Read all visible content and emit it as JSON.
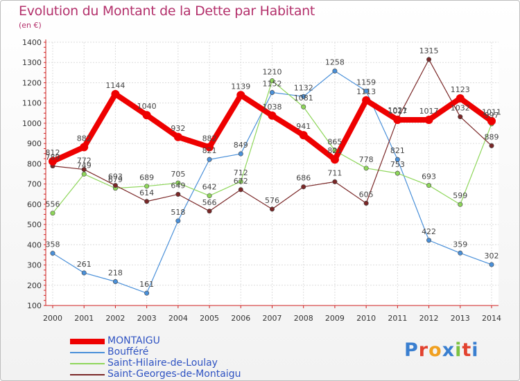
{
  "chart_data": {
    "type": "line",
    "title": "Evolution du Montant de la Dette par Habitant",
    "subtitle": "(en €)",
    "xlabel": "",
    "ylabel": "",
    "x": [
      "2000",
      "2001",
      "2002",
      "2003",
      "2004",
      "2005",
      "2006",
      "2007",
      "2008",
      "2009",
      "2010",
      "2011",
      "2012",
      "2013",
      "2014"
    ],
    "ylim": [
      100,
      1400
    ],
    "yticks": [
      100,
      200,
      300,
      400,
      500,
      600,
      700,
      800,
      900,
      1000,
      1100,
      1200,
      1300,
      1400
    ],
    "grid": true,
    "legend": "bottom-left",
    "series": [
      {
        "name": "MONTAIGU",
        "color": "#ee0000",
        "values": [
          812,
          882,
          1144,
          1040,
          932,
          882,
          1139,
          1038,
          941,
          821,
          1113,
          1017,
          1017,
          1123,
          1011
        ],
        "labels": [
          "812",
          "882",
          "1144",
          "1040",
          "932",
          "882",
          "1139",
          "1038",
          "941",
          "821",
          "1113",
          "1017",
          "1017",
          "1123",
          "1011"
        ]
      },
      {
        "name": "Boufféré",
        "color": "#4a90d9",
        "values": [
          358,
          261,
          218,
          161,
          518,
          821,
          849,
          1152,
          1132,
          1258,
          1159,
          821,
          422,
          359,
          302
        ],
        "labels": [
          "358",
          "261",
          "218",
          "161",
          "518",
          "821",
          "849",
          "1152",
          "1132",
          "1258",
          "1159",
          "821",
          "422",
          "359",
          "302"
        ]
      },
      {
        "name": "Saint-Hilaire-de-Loulay",
        "color": "#8ed65a",
        "values": [
          556,
          749,
          679,
          689,
          705,
          642,
          712,
          1210,
          1081,
          865,
          778,
          753,
          693,
          599,
          997
        ],
        "labels": [
          "556",
          "749",
          "679",
          "689",
          "705",
          "642",
          "712",
          "1210",
          "1081",
          "865",
          "778",
          "753",
          "693",
          "599",
          "997"
        ]
      },
      {
        "name": "Saint-Georges-de-Montaigu",
        "color": "#7a2727",
        "values": [
          789,
          772,
          693,
          614,
          649,
          566,
          672,
          576,
          686,
          711,
          605,
          1021,
          1315,
          1032,
          889
        ],
        "labels": [
          "789",
          "772",
          "693",
          "614",
          "649",
          "566",
          "672",
          "576",
          "686",
          "711",
          "605",
          "1021",
          "1315",
          "1032",
          "889"
        ]
      }
    ]
  },
  "brand": {
    "letters": [
      "P",
      "r",
      "o",
      "x",
      "i",
      "t",
      "i"
    ]
  }
}
